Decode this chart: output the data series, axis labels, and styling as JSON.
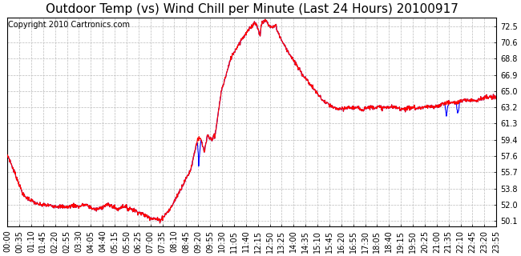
{
  "title": "Outdoor Temp (vs) Wind Chill per Minute (Last 24 Hours) 20100917",
  "copyright": "Copyright 2010 Cartronics.com",
  "yticks": [
    50.1,
    52.0,
    53.8,
    55.7,
    57.6,
    59.4,
    61.3,
    63.2,
    65.0,
    66.9,
    68.8,
    70.6,
    72.5
  ],
  "ylim": [
    49.5,
    73.5
  ],
  "background_color": "#ffffff",
  "grid_color": "#bbbbbb",
  "line_color_red": "#ff0000",
  "line_color_blue": "#0000ff",
  "title_fontsize": 11,
  "copyright_fontsize": 7,
  "tick_fontsize": 7,
  "xtick_labels": [
    "00:00",
    "00:35",
    "01:10",
    "01:45",
    "02:20",
    "02:55",
    "03:30",
    "04:05",
    "04:40",
    "05:15",
    "05:50",
    "06:25",
    "07:00",
    "07:35",
    "08:10",
    "08:45",
    "09:20",
    "09:55",
    "10:30",
    "11:05",
    "11:40",
    "12:15",
    "12:50",
    "13:25",
    "14:00",
    "14:35",
    "15:10",
    "15:45",
    "16:20",
    "16:55",
    "17:30",
    "18:05",
    "18:40",
    "19:15",
    "19:50",
    "20:25",
    "21:00",
    "21:35",
    "22:10",
    "22:45",
    "23:20",
    "23:55"
  ]
}
